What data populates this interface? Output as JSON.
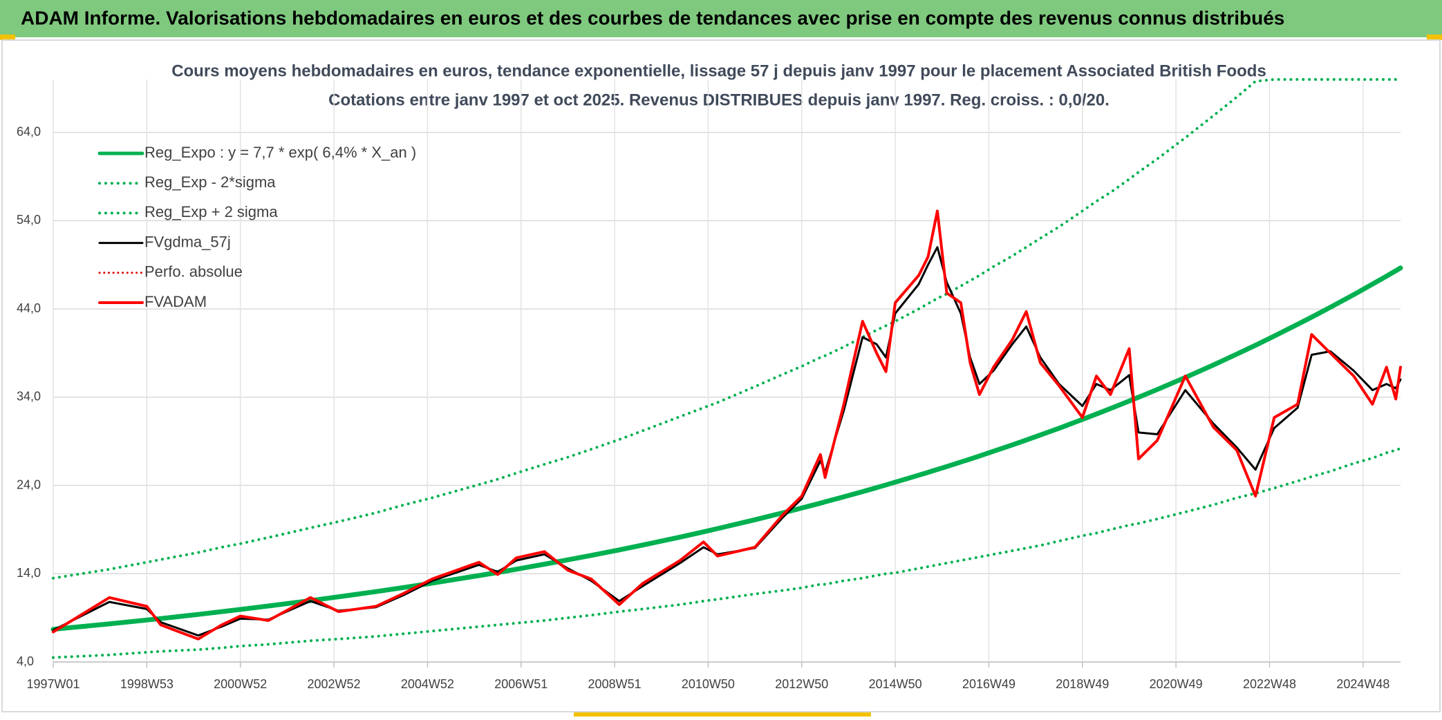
{
  "header": {
    "title": "ADAM Informe. Valorisations hebdomadaires en euros et des courbes de tendances avec prise en compte des revenus connus distribués"
  },
  "chart_data": {
    "type": "line",
    "title": "Cours moyens hebdomadaires en euros, tendance exponentielle, lissage 57 j depuis janv 1997 pour le placement Associated British Foods",
    "subtitle": "Cotations entre janv 1997 et oct 2025. Revenus DISTRIBUES depuis janv 1997. Reg. croiss. : 0,0/20.",
    "legend": "upper left",
    "grid": true,
    "xlim": [
      1997.0,
      2025.8
    ],
    "ylim": [
      4,
      70
    ],
    "yticks": [
      {
        "value": 4,
        "label": "4,0"
      },
      {
        "value": 14,
        "label": "14,0"
      },
      {
        "value": 24,
        "label": "24,0"
      },
      {
        "value": 34,
        "label": "34,0"
      },
      {
        "value": 44,
        "label": "44,0"
      },
      {
        "value": 54,
        "label": "54,0"
      },
      {
        "value": 64,
        "label": "64,0"
      }
    ],
    "xticks": [
      {
        "value": 1997.0,
        "label": "1997W01"
      },
      {
        "value": 1999.0,
        "label": "1998W53"
      },
      {
        "value": 2001.0,
        "label": "2000W52"
      },
      {
        "value": 2003.0,
        "label": "2002W52"
      },
      {
        "value": 2005.0,
        "label": "2004W52"
      },
      {
        "value": 2007.0,
        "label": "2006W51"
      },
      {
        "value": 2009.0,
        "label": "2008W51"
      },
      {
        "value": 2011.0,
        "label": "2010W50"
      },
      {
        "value": 2013.0,
        "label": "2012W50"
      },
      {
        "value": 2015.0,
        "label": "2014W50"
      },
      {
        "value": 2017.0,
        "label": "2016W49"
      },
      {
        "value": 2019.0,
        "label": "2018W49"
      },
      {
        "value": 2021.0,
        "label": "2020W49"
      },
      {
        "value": 2023.0,
        "label": "2022W48"
      },
      {
        "value": 2025.0,
        "label": "2024W48"
      }
    ],
    "x": [
      1997.0,
      1998.2,
      1999.0,
      1999.3,
      2000.1,
      2000.6,
      2001.0,
      2001.6,
      2002.5,
      2003.1,
      2003.9,
      2004.5,
      2005.1,
      2006.1,
      2006.5,
      2006.9,
      2007.5,
      2008.0,
      2008.5,
      2009.1,
      2009.6,
      2010.4,
      2010.9,
      2011.2,
      2012.0,
      2012.6,
      2013.0,
      2013.4,
      2013.5,
      2013.9,
      2014.3,
      2014.6,
      2014.8,
      2015.0,
      2015.5,
      2015.7,
      2015.9,
      2016.1,
      2016.4,
      2016.6,
      2016.8,
      2017.1,
      2017.5,
      2017.8,
      2018.1,
      2018.5,
      2019.0,
      2019.3,
      2019.6,
      2020.0,
      2020.2,
      2020.6,
      2021.2,
      2021.8,
      2022.3,
      2022.7,
      2023.1,
      2023.6,
      2023.9,
      2024.3,
      2024.8,
      2025.2,
      2025.5,
      2025.7,
      2025.8
    ],
    "series": [
      {
        "name": "Reg_Expo : y = 7,7 * exp( 6,4% *  X_an )",
        "color": "#00b050",
        "style": "solid",
        "width": 7,
        "values": [
          7.7,
          8.31,
          8.75,
          8.92,
          9.39,
          9.7,
          9.95,
          10.34,
          10.95,
          11.38,
          11.97,
          12.44,
          12.93,
          13.79,
          14.14,
          14.51,
          15.08,
          15.57,
          16.07,
          16.7,
          17.25,
          18.15,
          18.74,
          19.11,
          20.11,
          20.9,
          21.44,
          21.99,
          22.14,
          22.71,
          23.3,
          23.75,
          24.06,
          24.37,
          25.16,
          25.48,
          25.81,
          26.14,
          26.65,
          26.99,
          27.34,
          27.87,
          28.59,
          29.15,
          29.71,
          30.48,
          31.48,
          32.09,
          32.71,
          33.56,
          33.99,
          34.87,
          36.23,
          37.65,
          38.88,
          39.88,
          40.92,
          42.25,
          43.07,
          44.19,
          45.62,
          46.81,
          47.71,
          48.33,
          48.64
        ]
      },
      {
        "name": "Reg_Exp - 2*sigma",
        "color": "#00b050",
        "style": "dotted",
        "width": 4,
        "values": [
          4.5,
          4.8,
          5.1,
          5.2,
          5.4,
          5.6,
          5.8,
          6.0,
          6.4,
          6.6,
          6.9,
          7.2,
          7.5,
          8.0,
          8.2,
          8.4,
          8.7,
          9.0,
          9.3,
          9.7,
          10.0,
          10.5,
          10.9,
          11.1,
          11.7,
          12.1,
          12.4,
          12.8,
          12.8,
          13.2,
          13.5,
          13.8,
          14.0,
          14.1,
          14.6,
          14.8,
          15.0,
          15.2,
          15.5,
          15.7,
          15.9,
          16.2,
          16.6,
          16.9,
          17.2,
          17.7,
          18.3,
          18.6,
          19.0,
          19.5,
          19.7,
          20.2,
          21.0,
          21.8,
          22.6,
          23.1,
          23.7,
          24.5,
          25.0,
          25.6,
          26.5,
          27.1,
          27.7,
          28.0,
          28.2
        ]
      },
      {
        "name": "Reg_Exp + 2 sigma",
        "color": "#00b050",
        "style": "dotted",
        "width": 4,
        "values": [
          13.5,
          14.5,
          15.3,
          15.6,
          16.4,
          17.0,
          17.4,
          18.1,
          19.2,
          19.9,
          20.9,
          21.8,
          22.6,
          24.1,
          24.7,
          25.4,
          26.4,
          27.2,
          28.1,
          29.2,
          30.2,
          31.8,
          32.8,
          33.4,
          35.2,
          36.6,
          37.5,
          38.5,
          38.7,
          39.7,
          40.8,
          41.6,
          42.1,
          42.6,
          44.0,
          44.6,
          45.2,
          45.7,
          46.6,
          47.2,
          47.8,
          48.8,
          50.0,
          51.0,
          52.0,
          53.3,
          55.1,
          56.2,
          57.2,
          58.7,
          59.5,
          61.0,
          63.4,
          65.9,
          68.0,
          69.8,
          70,
          70,
          70,
          70,
          70,
          70,
          70,
          70,
          70
        ]
      },
      {
        "name": "FVgdma_57j",
        "color": "#000000",
        "style": "solid",
        "width": 3,
        "values": [
          7.6,
          10.8,
          10.0,
          8.5,
          7.0,
          8.0,
          8.9,
          8.8,
          10.9,
          9.8,
          10.2,
          11.6,
          13.2,
          15.0,
          14.2,
          15.5,
          16.2,
          14.6,
          13.2,
          10.9,
          12.6,
          15.2,
          17.0,
          16.2,
          16.9,
          20.4,
          22.5,
          26.8,
          25.5,
          32.5,
          40.8,
          40.0,
          38.5,
          43.5,
          46.8,
          49.0,
          51.0,
          47.0,
          43.5,
          38.5,
          35.5,
          37.0,
          40.0,
          42.0,
          38.5,
          35.5,
          33.0,
          35.5,
          34.8,
          36.5,
          30.0,
          29.8,
          34.8,
          31.0,
          28.3,
          25.8,
          30.5,
          32.8,
          38.8,
          39.2,
          37.0,
          34.8,
          35.5,
          35.0,
          36.0
        ]
      },
      {
        "name": "Perfo. absolue",
        "color": "#e00000",
        "style": "dotted",
        "width": 3,
        "values": [
          null,
          null,
          null,
          null,
          null,
          null,
          null,
          null,
          null,
          null,
          null,
          null,
          null,
          null,
          null,
          null,
          null,
          null,
          null,
          null,
          null,
          null,
          null,
          null,
          null,
          null,
          null,
          null,
          null,
          null,
          null,
          null,
          null,
          null,
          null,
          null,
          null,
          null,
          null,
          null,
          null,
          null,
          null,
          null,
          null,
          null,
          null,
          null,
          null,
          null,
          null,
          null,
          null,
          null,
          null,
          null,
          null,
          null,
          null,
          null,
          null,
          null,
          null,
          null,
          null
        ]
      },
      {
        "name": "FVADAM",
        "color": "#ff0000",
        "style": "solid",
        "width": 4,
        "values": [
          7.4,
          11.3,
          10.3,
          8.2,
          6.6,
          8.2,
          9.2,
          8.7,
          11.3,
          9.7,
          10.3,
          11.8,
          13.4,
          15.3,
          13.9,
          15.8,
          16.5,
          14.4,
          13.4,
          10.5,
          12.9,
          15.5,
          17.6,
          16.0,
          17.0,
          20.7,
          22.8,
          27.5,
          24.9,
          33.2,
          42.6,
          39.0,
          36.9,
          44.7,
          47.8,
          49.9,
          55.1,
          45.8,
          44.7,
          37.9,
          34.3,
          37.4,
          40.5,
          43.7,
          37.9,
          35.3,
          31.7,
          36.4,
          34.3,
          39.5,
          27.0,
          29.1,
          36.4,
          30.6,
          28.0,
          22.8,
          31.7,
          33.2,
          41.1,
          39.0,
          36.4,
          33.2,
          37.4,
          33.8,
          37.4
        ]
      }
    ]
  }
}
